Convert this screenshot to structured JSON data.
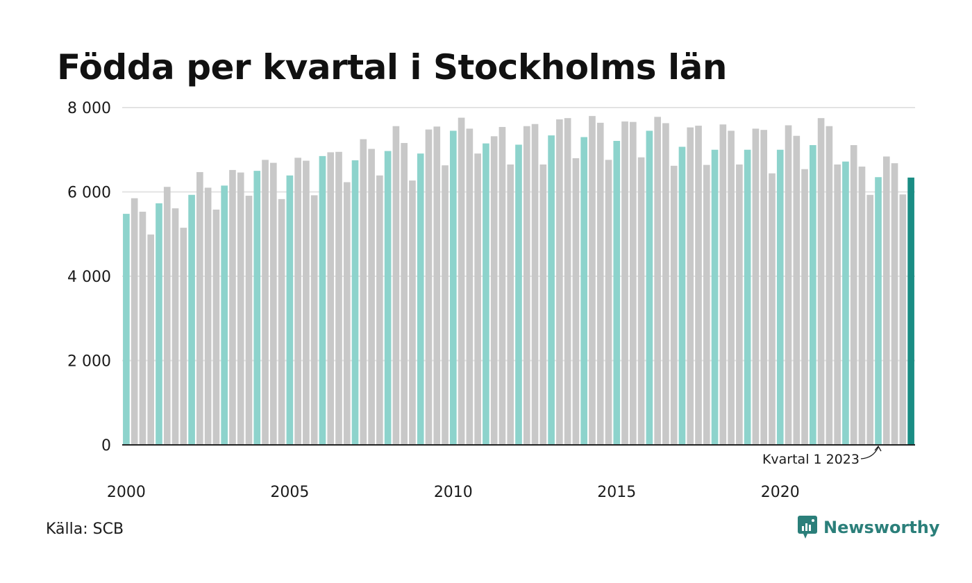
{
  "title": "Födda per kvartal i Stockholms län",
  "source": "Källa: SCB",
  "brand": {
    "name": "Newsworthy",
    "icon": "newsworthy-logo-icon"
  },
  "colors": {
    "q1": "#8dd3cc",
    "other": "#c8c8c8",
    "highlight": "#1a8d84",
    "grid": "#e3e3e3",
    "baseline": "#222222",
    "brand": "#2b7f7a"
  },
  "chart_data": {
    "type": "bar",
    "title": "Födda per kvartal i Stockholms län",
    "xlabel": "",
    "ylabel": "",
    "ylim": [
      0,
      8000
    ],
    "yticks": [
      0,
      2000,
      4000,
      6000,
      8000
    ],
    "ytick_labels": [
      "0",
      "2 000",
      "4 000",
      "6 000",
      "8 000"
    ],
    "xticks": [
      2000,
      2005,
      2010,
      2015,
      2020
    ],
    "xtick_labels": [
      "2000",
      "2005",
      "2010",
      "2015",
      "2020"
    ],
    "grid": true,
    "start_year": 2000,
    "series_colors": "Q1 bars teal, other quarters grey, latest bar dark teal",
    "values": [
      5480,
      5850,
      5530,
      4990,
      5730,
      6120,
      5610,
      5150,
      5930,
      6470,
      6100,
      5580,
      6150,
      6520,
      6460,
      5910,
      6500,
      6760,
      6690,
      5830,
      6390,
      6810,
      6740,
      5920,
      6850,
      6940,
      6950,
      6230,
      6750,
      7250,
      7020,
      6390,
      6970,
      7560,
      7160,
      6270,
      6910,
      7480,
      7550,
      6630,
      7450,
      7760,
      7500,
      6910,
      7150,
      7320,
      7540,
      6650,
      7120,
      7560,
      7610,
      6650,
      7340,
      7720,
      7750,
      6800,
      7300,
      7800,
      7640,
      6760,
      7210,
      7670,
      7660,
      6820,
      7450,
      7780,
      7630,
      6620,
      7070,
      7530,
      7570,
      6640,
      7000,
      7600,
      7450,
      6650,
      7000,
      7500,
      7470,
      6440,
      7000,
      7580,
      7330,
      6540,
      7110,
      7750,
      7560,
      6650,
      6720,
      7110,
      6600,
      5930,
      6350,
      6840,
      6680,
      5940,
      6340
    ],
    "highlight_index": 96,
    "annotation": {
      "text": "Kvartal 1 2023",
      "target_index": 92
    }
  }
}
